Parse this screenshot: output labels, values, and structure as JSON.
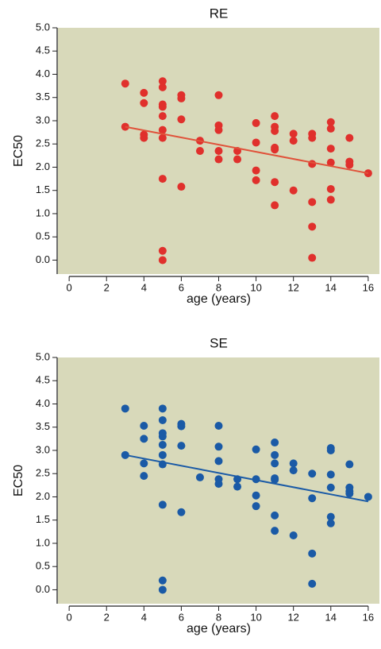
{
  "chart_data": [
    {
      "type": "scatter",
      "title": "RE",
      "x_label": "age (years)",
      "y_label": "EC50",
      "background": "#d8d9ba",
      "color": "#e0302c",
      "x": [
        3,
        3,
        4,
        4,
        4,
        4,
        5,
        5,
        5,
        5,
        5,
        5,
        5,
        5,
        5,
        5,
        6,
        6,
        6,
        6,
        7,
        7,
        8,
        8,
        8,
        8,
        8,
        9,
        9,
        10,
        10,
        10,
        10,
        11,
        11,
        11,
        11,
        11,
        11,
        11,
        12,
        12,
        12,
        13,
        13,
        13,
        13,
        13,
        13,
        14,
        14,
        14,
        14,
        14,
        14,
        15,
        15,
        15,
        16
      ],
      "values": [
        3.8,
        2.87,
        3.6,
        3.38,
        2.7,
        2.63,
        3.85,
        3.72,
        3.35,
        3.3,
        3.1,
        2.8,
        2.63,
        1.75,
        0.2,
        0.0,
        3.55,
        3.48,
        3.03,
        1.58,
        2.57,
        2.35,
        3.55,
        2.9,
        2.8,
        2.35,
        2.17,
        2.35,
        2.17,
        2.95,
        2.53,
        1.93,
        1.72,
        3.1,
        2.87,
        2.78,
        2.42,
        2.38,
        1.68,
        1.18,
        2.72,
        2.57,
        1.5,
        2.72,
        2.63,
        2.07,
        1.25,
        0.72,
        0.05,
        2.97,
        2.83,
        2.4,
        2.1,
        1.53,
        1.3,
        2.63,
        2.12,
        2.05,
        1.87
      ],
      "fit": {
        "x": [
          3,
          16
        ],
        "values": [
          2.87,
          1.87
        ],
        "color": "#e0523a"
      },
      "xlim": [
        -0.6,
        16.6
      ],
      "ylim": [
        -0.3,
        5.0
      ],
      "xticks": [
        0,
        2,
        4,
        6,
        8,
        10,
        12,
        14,
        16
      ],
      "yticks": [
        {
          "value": 0,
          "label": "0.0"
        },
        0.5,
        {
          "value": 1,
          "label": "1.0"
        },
        1.5,
        {
          "value": 2,
          "label": "2.0"
        },
        2.5,
        {
          "value": 3,
          "label": "3.0"
        },
        3.5,
        {
          "value": 4,
          "label": "4.0"
        },
        4.5,
        {
          "value": 5,
          "label": "5.0"
        }
      ]
    },
    {
      "type": "scatter",
      "title": "SE",
      "x_label": "age (years)",
      "y_label": "EC50",
      "background": "#d8d9ba",
      "color": "#1a5aa6",
      "x": [
        3,
        3,
        4,
        4,
        4,
        4,
        5,
        5,
        5,
        5,
        5,
        5,
        5,
        5,
        5,
        5,
        6,
        6,
        6,
        6,
        7,
        8,
        8,
        8,
        8,
        8,
        9,
        9,
        10,
        10,
        10,
        10,
        11,
        11,
        11,
        11,
        11,
        11,
        11,
        12,
        12,
        12,
        13,
        13,
        13,
        13,
        14,
        14,
        14,
        14,
        14,
        14,
        15,
        15,
        15,
        15,
        16
      ],
      "values": [
        3.9,
        2.9,
        3.53,
        3.25,
        2.72,
        2.45,
        3.9,
        3.65,
        3.37,
        3.3,
        3.12,
        2.9,
        2.7,
        1.83,
        0.2,
        0.0,
        3.57,
        3.52,
        3.1,
        1.67,
        2.42,
        3.53,
        3.08,
        2.77,
        2.38,
        2.28,
        2.38,
        2.22,
        3.02,
        2.38,
        2.03,
        1.8,
        3.17,
        2.9,
        2.72,
        2.4,
        2.37,
        1.6,
        1.27,
        2.72,
        2.57,
        1.17,
        2.5,
        1.97,
        0.78,
        0.13,
        3.05,
        3.0,
        2.48,
        2.2,
        1.57,
        1.43,
        2.7,
        2.2,
        2.12,
        2.07,
        2.0
      ],
      "fit": {
        "x": [
          3,
          16
        ],
        "values": [
          2.9,
          1.9
        ],
        "color": "#1a5aa6"
      },
      "xlim": [
        -0.6,
        16.6
      ],
      "ylim": [
        -0.3,
        5.0
      ],
      "xticks": [
        0,
        2,
        4,
        6,
        8,
        10,
        12,
        14,
        16
      ],
      "yticks": [
        {
          "value": 0,
          "label": "0.0"
        },
        0.5,
        {
          "value": 1,
          "label": "1.0"
        },
        1.5,
        {
          "value": 2,
          "label": "2.0"
        },
        2.5,
        {
          "value": 3,
          "label": "3.0"
        },
        3.5,
        {
          "value": 4,
          "label": "4.0"
        },
        4.5,
        {
          "value": 5,
          "label": "5.0"
        }
      ]
    }
  ]
}
